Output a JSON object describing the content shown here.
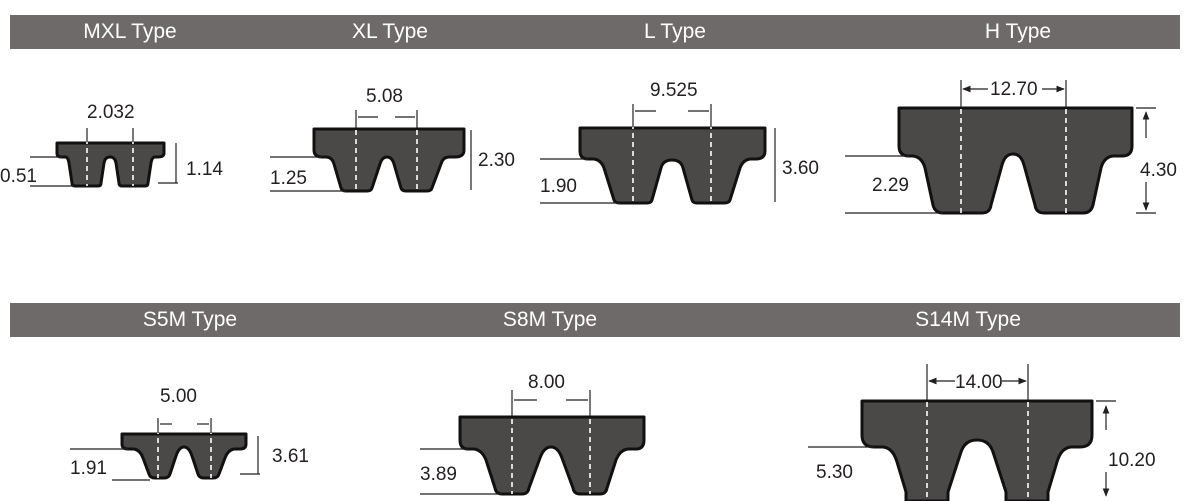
{
  "colors": {
    "header_bar": "#6d6a69",
    "header_text": "#ffffff",
    "belt_fill": "#4b4848",
    "belt_outline": "#111111",
    "line": "#231f20",
    "pitch_line": "#ffffff"
  },
  "rows": [
    {
      "types": [
        {
          "title": "MXL Type",
          "pitch": "2.032",
          "tooth_height": "0.51",
          "belt_thickness": "1.14"
        },
        {
          "title": "XL Type",
          "pitch": "5.08",
          "tooth_height": "1.25",
          "belt_thickness": "2.30"
        },
        {
          "title": "L Type",
          "pitch": "9.525",
          "tooth_height": "1.90",
          "belt_thickness": "3.60"
        },
        {
          "title": "H Type",
          "pitch": "12.70",
          "tooth_height": "2.29",
          "belt_thickness": "4.30"
        }
      ]
    },
    {
      "types": [
        {
          "title": "S5M Type",
          "pitch": "5.00",
          "tooth_height": "1.91",
          "belt_thickness": "3.61"
        },
        {
          "title": "S8M Type",
          "pitch": "8.00",
          "tooth_height": "3.89",
          "belt_thickness": ""
        },
        {
          "title": "S14M Type",
          "pitch": "14.00",
          "tooth_height": "5.30",
          "belt_thickness": "10.20"
        }
      ]
    }
  ]
}
